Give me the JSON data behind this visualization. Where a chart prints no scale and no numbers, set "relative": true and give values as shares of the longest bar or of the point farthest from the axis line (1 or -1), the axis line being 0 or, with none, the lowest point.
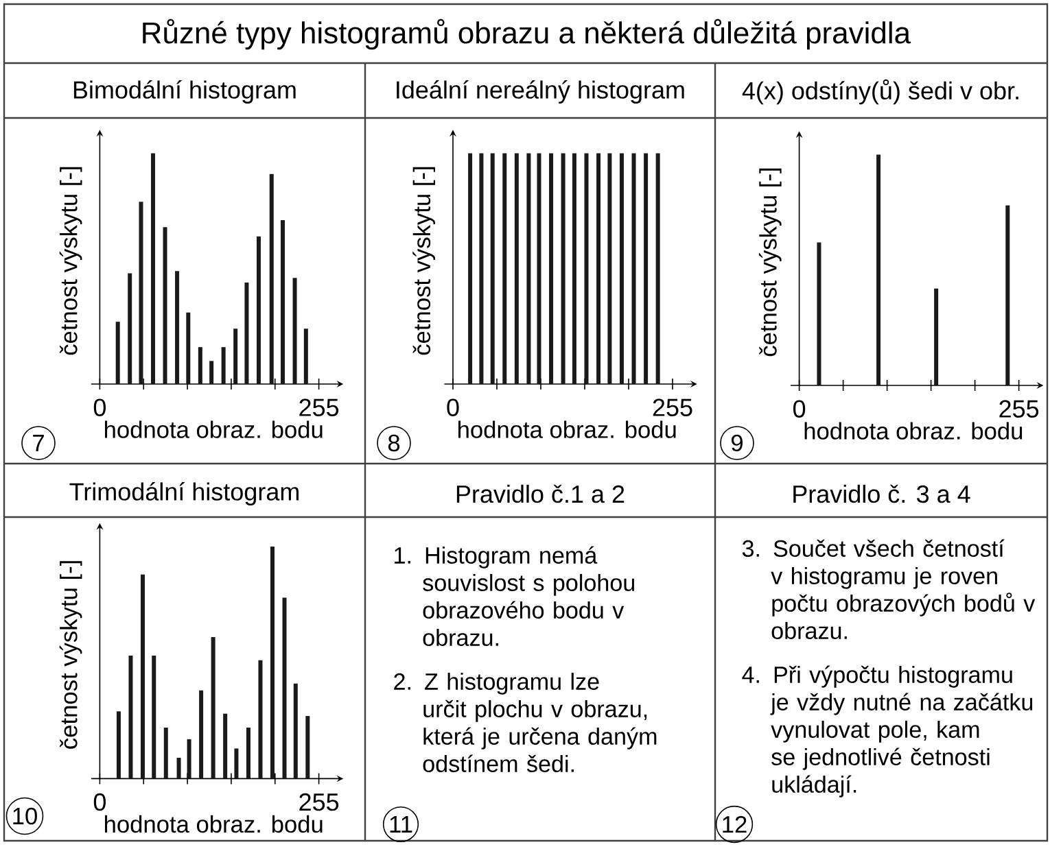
{
  "chart_data": [
    {
      "type": "bar",
      "title": "Různé typy histogramů obrazu a některá důležitá pravidla",
      "subtitle": "Bimodální histogram",
      "xlabel": "hodnota obraz. bodu",
      "ylabel": "četnost výskytu [-]",
      "relative": true,
      "color": "#1a1a1a",
      "x": [
        21,
        35,
        48,
        62,
        76,
        90,
        103,
        117,
        130,
        144,
        158,
        171,
        185,
        200,
        213,
        227,
        240
      ],
      "values": [
        0.27,
        0.48,
        0.79,
        1,
        0.68,
        0.49,
        0.31,
        0.16,
        0.1,
        0.16,
        0.24,
        0.44,
        0.64,
        0.91,
        0.71,
        0.46,
        0.24
      ],
      "xlim": [
        -10,
        275
      ],
      "xticks": [
        0,
        {
          "value": 51,
          "label": null
        },
        {
          "value": 102,
          "label": null
        },
        {
          "value": 153,
          "label": null
        },
        {
          "value": 204,
          "label": null
        },
        255
      ],
      "annotations": [
        "7"
      ]
    },
    {
      "type": "bar",
      "title": "Ideální nereálný histogram",
      "xlabel": "hodnota obraz. bodu",
      "ylabel": "četnost výskytu [-]",
      "relative": true,
      "color": "#1a1a1a",
      "x": [
        20,
        33,
        46,
        60,
        74,
        88,
        100,
        114,
        128,
        141,
        155,
        169,
        182,
        196,
        210,
        224,
        238
      ],
      "values": [
        1,
        1,
        1,
        1,
        1,
        1,
        1,
        1,
        1,
        1,
        1,
        1,
        1,
        1,
        1,
        1,
        1
      ],
      "xlim": [
        -10,
        275
      ],
      "xticks": [
        0,
        {
          "value": 51,
          "label": null
        },
        {
          "value": 102,
          "label": null
        },
        {
          "value": 153,
          "label": null
        },
        {
          "value": 204,
          "label": null
        },
        255
      ],
      "annotations": [
        "8"
      ]
    },
    {
      "type": "bar",
      "title": "4(x) odstíny(ů) šedi v obr.",
      "xlabel": "hodnota obraz. bodu",
      "ylabel": "četnost výskytu [-]",
      "relative": true,
      "color": "#1a1a1a",
      "x": [
        23,
        92,
        159,
        242
      ],
      "values": [
        0.62,
        1,
        0.42,
        0.78
      ],
      "xlim": [
        -10,
        275
      ],
      "xticks": [
        0,
        {
          "value": 51,
          "label": null
        },
        {
          "value": 102,
          "label": null
        },
        {
          "value": 153,
          "label": null
        },
        {
          "value": 204,
          "label": null
        },
        255
      ],
      "annotations": [
        "9"
      ]
    },
    {
      "type": "bar",
      "title": "Trimodální histogram",
      "xlabel": "hodnota obraz. bodu",
      "ylabel": "četnost výskytu [-]",
      "relative": true,
      "color": "#1a1a1a",
      "x": [
        22,
        36,
        50,
        63,
        77,
        92,
        104,
        118,
        132,
        146,
        159,
        173,
        187,
        201,
        215,
        228,
        242
      ],
      "values": [
        0.29,
        0.53,
        0.88,
        0.53,
        0.22,
        0.09,
        0.17,
        0.38,
        0.61,
        0.28,
        0.13,
        0.22,
        0.51,
        1,
        0.78,
        0.41,
        0.27
      ],
      "xlim": [
        -10,
        275
      ],
      "xticks": [
        0,
        {
          "value": 51,
          "label": null
        },
        {
          "value": 102,
          "label": null
        },
        {
          "value": 153,
          "label": null
        },
        {
          "value": 204,
          "label": null
        },
        255
      ],
      "annotations": [
        "10"
      ]
    },
    {
      "type": "other",
      "title": "Pravidlo č.1 a 2",
      "annotations": [
        "1. Histogram nemá souvislost s polohou obrazového bodu v obrazu.",
        "2. Z histogramu lze určit plochu v obrazu, která je určena daným odstínem šedi.",
        "11"
      ]
    },
    {
      "type": "other",
      "title": "Pravidlo č. 3 a 4",
      "annotations": [
        "3. Součet všech četností v histogramu je roven počtu obrazových bodů v obrazu.",
        "4. Při výpočtu histogramu je vždy nutné na začátku vynulovat pole, kam se jednotlivé četnosti ukládají.",
        "12"
      ]
    }
  ]
}
